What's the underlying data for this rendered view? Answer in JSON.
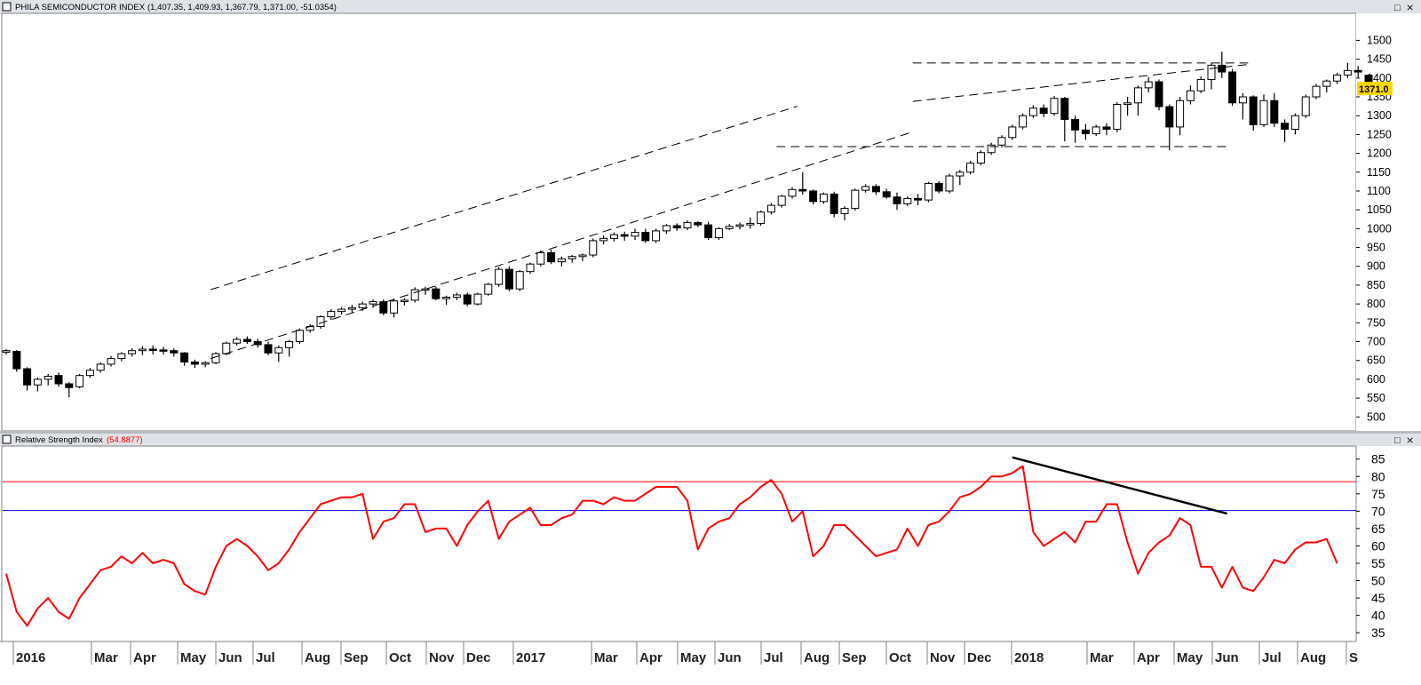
{
  "upper_panel": {
    "title": "PHILA SEMICONDUCTOR INDEX",
    "ohlc_readout": "(1,407.35, 1,409.93, 1,367.79, 1,371.00, -51.0354)",
    "price_marker": "1371.0",
    "window_buttons": [
      "□",
      "⨯"
    ]
  },
  "lower_panel": {
    "title": "Relative Strength Index",
    "value_readout": "(54.8877)",
    "window_buttons": [
      "□",
      "⨯"
    ]
  },
  "colors": {
    "frame_bg": "#dfe3e8",
    "candle": "#000000",
    "rsi_line": "#ff0000",
    "rsi_upper_band": "#ff0000",
    "rsi_lower_band": "#0000ff",
    "price_marker_bg": "#ffd700"
  },
  "chart_data": [
    {
      "type": "candlestick",
      "title": "PHILA SEMICONDUCTOR INDEX",
      "ylim": [
        470,
        1560
      ],
      "yticks": [
        500,
        550,
        600,
        650,
        700,
        750,
        800,
        850,
        900,
        950,
        1000,
        1050,
        1100,
        1150,
        1200,
        1250,
        1300,
        1350,
        1400,
        1450,
        1500
      ],
      "xticks": [
        "2016",
        "Mar",
        "Apr",
        "May",
        "Jun",
        "Jul",
        "Aug",
        "Sep",
        "Oct",
        "Nov",
        "Dec",
        "2017",
        "Mar",
        "Apr",
        "May",
        "Jun",
        "Jul",
        "Aug",
        "Sep",
        "Oct",
        "Nov",
        "Dec",
        "2018",
        "Mar",
        "Apr",
        "May",
        "Jun",
        "Jul",
        "Aug",
        "S"
      ],
      "candles": [
        [
          672,
          680,
          666,
          676
        ],
        [
          674,
          678,
          620,
          628
        ],
        [
          628,
          632,
          570,
          585
        ],
        [
          585,
          605,
          568,
          600
        ],
        [
          600,
          614,
          584,
          608
        ],
        [
          610,
          618,
          580,
          588
        ],
        [
          588,
          592,
          552,
          578
        ],
        [
          580,
          614,
          576,
          610
        ],
        [
          610,
          630,
          604,
          624
        ],
        [
          624,
          645,
          618,
          640
        ],
        [
          640,
          662,
          634,
          655
        ],
        [
          655,
          672,
          648,
          668
        ],
        [
          668,
          682,
          660,
          676
        ],
        [
          676,
          688,
          664,
          680
        ],
        [
          680,
          690,
          666,
          678
        ],
        [
          678,
          686,
          666,
          676
        ],
        [
          676,
          682,
          660,
          670
        ],
        [
          670,
          672,
          636,
          646
        ],
        [
          646,
          652,
          630,
          640
        ],
        [
          640,
          648,
          632,
          644
        ],
        [
          644,
          672,
          640,
          668
        ],
        [
          668,
          700,
          664,
          696
        ],
        [
          696,
          712,
          690,
          706
        ],
        [
          706,
          714,
          694,
          700
        ],
        [
          700,
          708,
          684,
          692
        ],
        [
          692,
          700,
          664,
          670
        ],
        [
          670,
          690,
          646,
          684
        ],
        [
          684,
          705,
          660,
          700
        ],
        [
          700,
          735,
          694,
          730
        ],
        [
          730,
          746,
          724,
          740
        ],
        [
          740,
          770,
          734,
          766
        ],
        [
          766,
          786,
          758,
          780
        ],
        [
          780,
          792,
          772,
          786
        ],
        [
          786,
          798,
          778,
          790
        ],
        [
          790,
          806,
          782,
          800
        ],
        [
          800,
          812,
          790,
          806
        ],
        [
          806,
          812,
          770,
          776
        ],
        [
          776,
          812,
          764,
          808
        ],
        [
          808,
          816,
          796,
          810
        ],
        [
          810,
          844,
          804,
          838
        ],
        [
          838,
          846,
          824,
          840
        ],
        [
          840,
          846,
          810,
          814
        ],
        [
          814,
          822,
          798,
          818
        ],
        [
          818,
          830,
          810,
          824
        ],
        [
          824,
          830,
          794,
          800
        ],
        [
          800,
          830,
          796,
          826
        ],
        [
          826,
          856,
          822,
          852
        ],
        [
          852,
          898,
          846,
          892
        ],
        [
          892,
          900,
          834,
          840
        ],
        [
          840,
          890,
          834,
          886
        ],
        [
          886,
          910,
          880,
          906
        ],
        [
          906,
          942,
          900,
          936
        ],
        [
          936,
          944,
          906,
          912
        ],
        [
          912,
          926,
          900,
          920
        ],
        [
          920,
          930,
          910,
          926
        ],
        [
          926,
          934,
          914,
          930
        ],
        [
          930,
          974,
          924,
          968
        ],
        [
          968,
          982,
          958,
          974
        ],
        [
          974,
          990,
          966,
          984
        ],
        [
          984,
          992,
          968,
          980
        ],
        [
          980,
          1000,
          970,
          990
        ],
        [
          990,
          1000,
          962,
          968
        ],
        [
          968,
          1000,
          962,
          994
        ],
        [
          994,
          1012,
          986,
          1008
        ],
        [
          1008,
          1014,
          994,
          1002
        ],
        [
          1002,
          1022,
          996,
          1016
        ],
        [
          1016,
          1020,
          1004,
          1010
        ],
        [
          1010,
          1018,
          970,
          976
        ],
        [
          976,
          1004,
          970,
          1000
        ],
        [
          1000,
          1012,
          996,
          1006
        ],
        [
          1006,
          1016,
          998,
          1010
        ],
        [
          1010,
          1030,
          1000,
          1014
        ],
        [
          1014,
          1048,
          1008,
          1044
        ],
        [
          1044,
          1068,
          1038,
          1062
        ],
        [
          1062,
          1090,
          1056,
          1086
        ],
        [
          1086,
          1110,
          1080,
          1104
        ],
        [
          1104,
          1150,
          1090,
          1100
        ],
        [
          1100,
          1104,
          1064,
          1072
        ],
        [
          1072,
          1096,
          1066,
          1092
        ],
        [
          1092,
          1098,
          1030,
          1040
        ],
        [
          1040,
          1060,
          1022,
          1054
        ],
        [
          1054,
          1106,
          1048,
          1102
        ],
        [
          1102,
          1118,
          1096,
          1112
        ],
        [
          1112,
          1118,
          1090,
          1098
        ],
        [
          1098,
          1106,
          1080,
          1084
        ],
        [
          1084,
          1096,
          1050,
          1066
        ],
        [
          1066,
          1086,
          1060,
          1080
        ],
        [
          1080,
          1092,
          1062,
          1076
        ],
        [
          1076,
          1124,
          1070,
          1120
        ],
        [
          1120,
          1126,
          1094,
          1100
        ],
        [
          1100,
          1146,
          1094,
          1140
        ],
        [
          1140,
          1156,
          1116,
          1150
        ],
        [
          1150,
          1180,
          1144,
          1174
        ],
        [
          1174,
          1208,
          1168,
          1202
        ],
        [
          1202,
          1228,
          1196,
          1222
        ],
        [
          1222,
          1248,
          1216,
          1242
        ],
        [
          1242,
          1276,
          1236,
          1270
        ],
        [
          1270,
          1306,
          1264,
          1300
        ],
        [
          1300,
          1328,
          1294,
          1320
        ],
        [
          1320,
          1330,
          1296,
          1306
        ],
        [
          1306,
          1352,
          1300,
          1346
        ],
        [
          1346,
          1350,
          1232,
          1290
        ],
        [
          1290,
          1300,
          1228,
          1262
        ],
        [
          1262,
          1278,
          1236,
          1252
        ],
        [
          1252,
          1276,
          1246,
          1270
        ],
        [
          1270,
          1280,
          1248,
          1264
        ],
        [
          1264,
          1336,
          1256,
          1330
        ],
        [
          1330,
          1350,
          1300,
          1334
        ],
        [
          1334,
          1380,
          1300,
          1374
        ],
        [
          1374,
          1402,
          1362,
          1390
        ],
        [
          1390,
          1396,
          1314,
          1324
        ],
        [
          1324,
          1330,
          1208,
          1270
        ],
        [
          1270,
          1350,
          1248,
          1340
        ],
        [
          1340,
          1380,
          1330,
          1366
        ],
        [
          1366,
          1404,
          1360,
          1396
        ],
        [
          1396,
          1440,
          1370,
          1434
        ],
        [
          1434,
          1470,
          1400,
          1416
        ],
        [
          1416,
          1424,
          1326,
          1334
        ],
        [
          1334,
          1360,
          1290,
          1350
        ],
        [
          1350,
          1354,
          1260,
          1276
        ],
        [
          1276,
          1356,
          1270,
          1340
        ],
        [
          1340,
          1360,
          1270,
          1280
        ],
        [
          1280,
          1290,
          1230,
          1264
        ],
        [
          1264,
          1306,
          1250,
          1300
        ],
        [
          1300,
          1356,
          1294,
          1350
        ],
        [
          1350,
          1384,
          1344,
          1378
        ],
        [
          1378,
          1396,
          1362,
          1392
        ],
        [
          1392,
          1414,
          1384,
          1408
        ],
        [
          1408,
          1440,
          1400,
          1420
        ],
        [
          1420,
          1432,
          1402,
          1416
        ],
        [
          1407.35,
          1409.93,
          1367.79,
          1371.0
        ]
      ],
      "annotations": [
        {
          "kind": "dashed-line",
          "points": [
            [
              19.5,
              838
            ],
            [
              75.5,
              1325
            ]
          ]
        },
        {
          "kind": "dashed-line",
          "points": [
            [
              19.5,
              655
            ],
            [
              86.5,
              1257
            ]
          ]
        },
        {
          "kind": "dashed-line",
          "points": [
            [
              86.5,
              1338
            ],
            [
              118.5,
              1436
            ]
          ]
        },
        {
          "kind": "dashed-line",
          "points": [
            [
              73.5,
              1218
            ],
            [
              116.5,
              1218
            ]
          ]
        },
        {
          "kind": "dashed-line",
          "points": [
            [
              86.5,
              1440
            ],
            [
              118.5,
              1440
            ]
          ]
        }
      ]
    },
    {
      "type": "line",
      "title": "Relative Strength Index",
      "ylim": [
        33,
        88
      ],
      "yticks": [
        35,
        40,
        45,
        50,
        55,
        60,
        65,
        70,
        75,
        80,
        85
      ],
      "reference_lines": [
        78.5,
        70.2
      ],
      "series": [
        {
          "name": "",
          "values": [
            52,
            41,
            37,
            42,
            45,
            41,
            39,
            45,
            49,
            53,
            54,
            57,
            55,
            58,
            55,
            56,
            55,
            49,
            47,
            46,
            54,
            60,
            62,
            60,
            57,
            53,
            55,
            59,
            64,
            68,
            72,
            73,
            74,
            74,
            75,
            62,
            67,
            68,
            72,
            72,
            64,
            65,
            65,
            60,
            66,
            70,
            73,
            62,
            67,
            69,
            71,
            66,
            66,
            68,
            69,
            73,
            73,
            72,
            74,
            73,
            73,
            75,
            77,
            77,
            77,
            73,
            59,
            65,
            67,
            68,
            72,
            74,
            77,
            79,
            75,
            67,
            70,
            57,
            60,
            66,
            66,
            63,
            60,
            57,
            58,
            59,
            65,
            60,
            66,
            67,
            70,
            74,
            75,
            77,
            80,
            80,
            81,
            83,
            64,
            60,
            62,
            64,
            61,
            67,
            67,
            72,
            72,
            61,
            52,
            58,
            61,
            63,
            68,
            66,
            54,
            54,
            48,
            54,
            48,
            47,
            51,
            56,
            55,
            59,
            61,
            61,
            62,
            55
          ]
        }
      ],
      "annotations": [
        {
          "kind": "trend-line",
          "points": [
            [
              96.0,
              85.5
            ],
            [
              116.5,
              69.3
            ]
          ]
        }
      ]
    }
  ]
}
